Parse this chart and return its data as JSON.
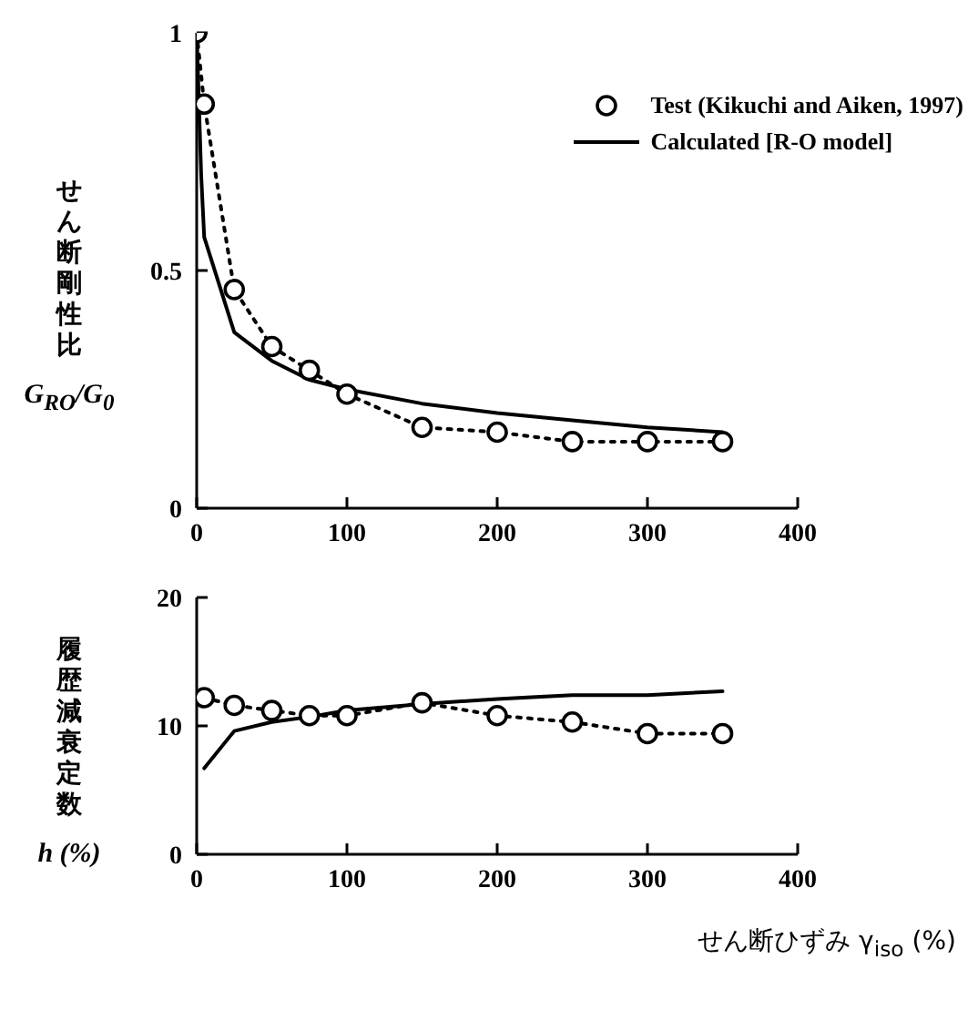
{
  "chart_data": [
    {
      "type": "line",
      "ylabel": "せん断剛性比 G$_{RO}$/G$_{0}$",
      "xlim": [
        0,
        400
      ],
      "xticks": [
        0,
        100,
        200,
        300,
        400
      ],
      "ylim": [
        0,
        1
      ],
      "yticks": [
        0,
        0.5,
        1
      ],
      "legend": "top right",
      "grid": false,
      "series": [
        {
          "name": "Test (Kikuchi and Aiken, 1997)",
          "color": "#000000",
          "marker": "circle",
          "line_style": "dotted",
          "x": [
            0,
            5,
            25,
            50,
            75,
            100,
            150,
            200,
            250,
            300,
            350
          ],
          "values": [
            1.0,
            0.85,
            0.46,
            0.34,
            0.29,
            0.24,
            0.17,
            0.16,
            0.14,
            0.14,
            0.14
          ]
        },
        {
          "name": "Calculated [R-O model]",
          "color": "#000000",
          "marker": "none",
          "line_style": "solid",
          "x": [
            0,
            3,
            5,
            25,
            50,
            75,
            100,
            150,
            200,
            250,
            300,
            350
          ],
          "values": [
            1.0,
            0.7,
            0.57,
            0.37,
            0.31,
            0.27,
            0.25,
            0.22,
            0.2,
            0.185,
            0.17,
            0.16
          ]
        }
      ]
    },
    {
      "type": "line",
      "ylabel": "履歴減衰定数 h (%)",
      "xlabel": "せん断ひずみ γ$_{iso}$ (%)",
      "xlim": [
        0,
        400
      ],
      "xticks": [
        0,
        100,
        200,
        300,
        400
      ],
      "ylim": [
        0,
        20
      ],
      "yticks": [
        0,
        10,
        20
      ],
      "legend": false,
      "grid": false,
      "series": [
        {
          "color": "#000000",
          "marker": "circle",
          "line_style": "dotted",
          "x": [
            5,
            25,
            50,
            75,
            100,
            150,
            200,
            250,
            300,
            350
          ],
          "values": [
            12.2,
            11.6,
            11.2,
            10.8,
            10.8,
            11.8,
            10.8,
            10.3,
            9.4,
            9.4
          ]
        },
        {
          "color": "#000000",
          "marker": "none",
          "line_style": "solid",
          "x": [
            5,
            25,
            50,
            75,
            100,
            150,
            200,
            250,
            300,
            350
          ],
          "values": [
            6.7,
            9.6,
            10.3,
            10.7,
            11.2,
            11.7,
            12.1,
            12.4,
            12.4,
            12.7
          ]
        }
      ]
    }
  ]
}
